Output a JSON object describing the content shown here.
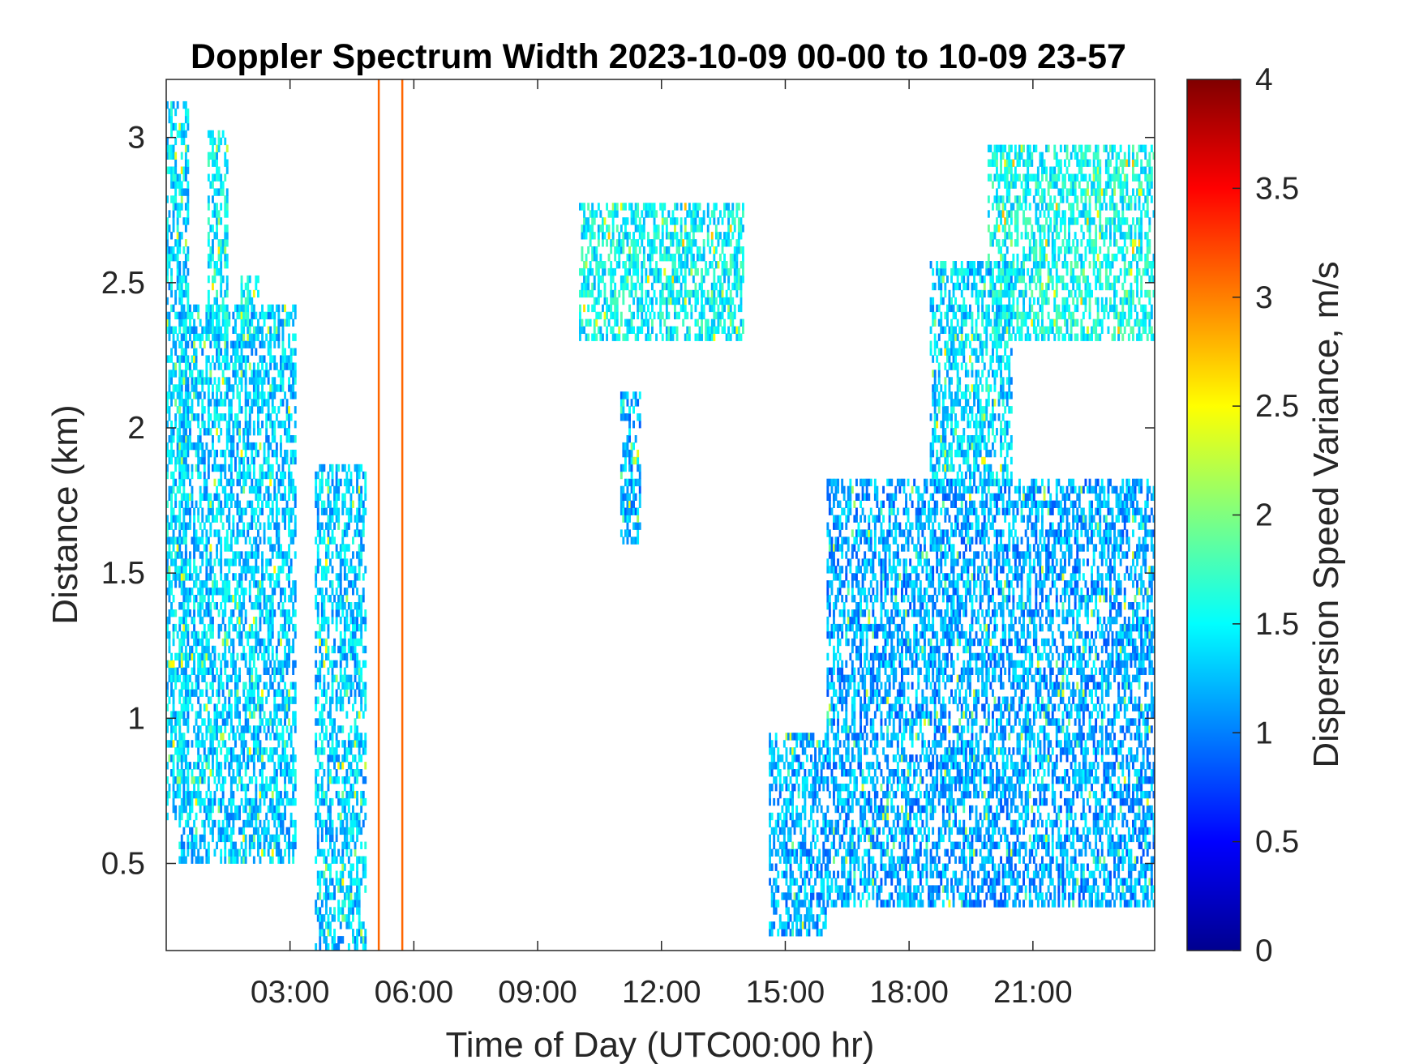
{
  "chart_data": {
    "type": "heatmap",
    "title": "Doppler Spectrum Width 2023-10-09 00-00 to 10-09 23-57",
    "xlabel": "Time of Day (UTC00:00 hr)",
    "ylabel": "Distance (km)",
    "colorbar_label": "Dispersion Speed Variance, m/s",
    "colormap": "jet",
    "xlim_hours": [
      0.0,
      23.95
    ],
    "ylim_km": [
      0.2,
      3.2
    ],
    "clim": [
      0,
      4
    ],
    "x_ticks": [
      {
        "hour": 3,
        "label": "03:00"
      },
      {
        "hour": 6,
        "label": "06:00"
      },
      {
        "hour": 9,
        "label": "09:00"
      },
      {
        "hour": 12,
        "label": "12:00"
      },
      {
        "hour": 15,
        "label": "15:00"
      },
      {
        "hour": 18,
        "label": "18:00"
      },
      {
        "hour": 21,
        "label": "21:00"
      }
    ],
    "y_ticks": [
      {
        "value": 0.5,
        "label": "0.5"
      },
      {
        "value": 1,
        "label": "1"
      },
      {
        "value": 1.5,
        "label": "1.5"
      },
      {
        "value": 2,
        "label": "2"
      },
      {
        "value": 2.5,
        "label": "2.5"
      },
      {
        "value": 3,
        "label": "3"
      }
    ],
    "colorbar_ticks": [
      {
        "value": 0,
        "label": "0"
      },
      {
        "value": 0.5,
        "label": "0.5"
      },
      {
        "value": 1,
        "label": "1"
      },
      {
        "value": 1.5,
        "label": "1.5"
      },
      {
        "value": 2,
        "label": "2"
      },
      {
        "value": 2.5,
        "label": "2.5"
      },
      {
        "value": 3,
        "label": "3"
      },
      {
        "value": 3.5,
        "label": "3.5"
      },
      {
        "value": 4,
        "label": "4"
      }
    ],
    "regions": [
      {
        "t": [
          0.0,
          0.5
        ],
        "z": [
          0.65,
          3.1
        ],
        "v": 1.35
      },
      {
        "t": [
          0.3,
          3.1
        ],
        "z": [
          0.5,
          2.4
        ],
        "v": 1.3
      },
      {
        "t": [
          1.0,
          1.5
        ],
        "z": [
          2.3,
          3.0
        ],
        "v": 1.45
      },
      {
        "t": [
          1.8,
          2.2
        ],
        "z": [
          2.3,
          2.5
        ],
        "v": 1.45
      },
      {
        "t": [
          3.6,
          4.8
        ],
        "z": [
          0.2,
          1.85
        ],
        "v": 1.3
      },
      {
        "t": [
          10.0,
          14.0
        ],
        "z": [
          2.3,
          2.75
        ],
        "v": 1.5
      },
      {
        "t": [
          11.0,
          11.5
        ],
        "z": [
          1.6,
          2.1
        ],
        "v": 1.2
      },
      {
        "t": [
          14.6,
          16.0
        ],
        "z": [
          0.25,
          0.95
        ],
        "v": 1.2
      },
      {
        "t": [
          16.0,
          23.95
        ],
        "z": [
          0.35,
          1.8
        ],
        "v": 1.15
      },
      {
        "t": [
          19.9,
          23.95
        ],
        "z": [
          2.3,
          2.95
        ],
        "v": 1.55
      },
      {
        "t": [
          18.5,
          20.5
        ],
        "z": [
          1.8,
          2.55
        ],
        "v": 1.35
      }
    ],
    "vertical_lines": [
      {
        "hour": 5.15,
        "value": 3.1
      },
      {
        "hour": 5.72,
        "value": 3.1
      }
    ]
  }
}
